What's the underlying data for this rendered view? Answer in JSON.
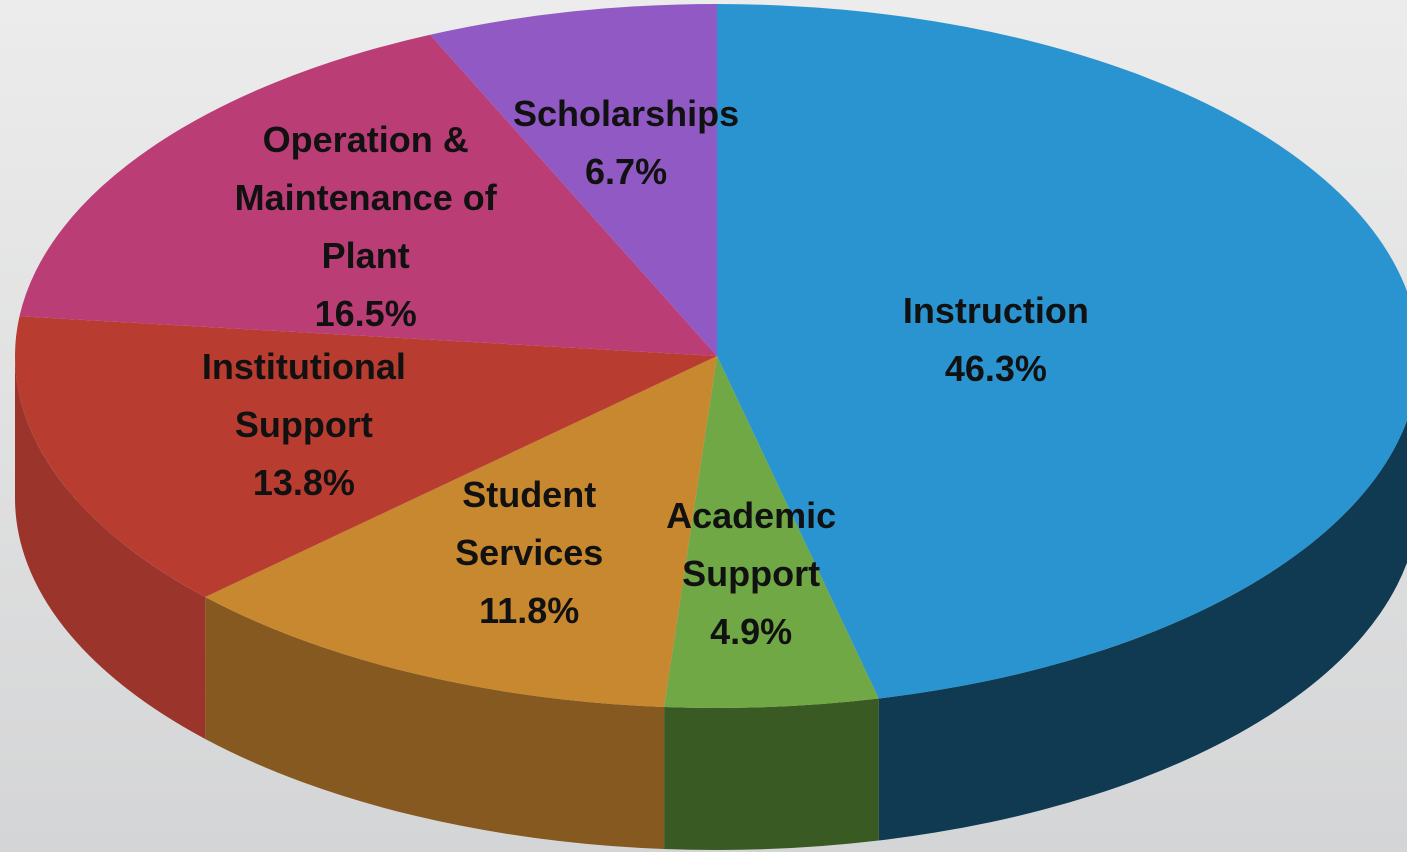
{
  "chart_data": {
    "type": "pie3d",
    "categories": [
      "Instruction",
      "Academic Support",
      "Student Services",
      "Institutional Support",
      "Operation & Maintenance of Plant",
      "Scholarships"
    ],
    "values": [
      46.3,
      4.9,
      11.8,
      13.8,
      16.5,
      6.7
    ],
    "value_labels": [
      "46.3%",
      "4.9%",
      "11.8%",
      "13.8%",
      "16.5%",
      "6.7%"
    ],
    "colors": [
      "#2a94d0",
      "#6fa845",
      "#c8882f",
      "#b83c30",
      "#bb3d76",
      "#9159c4"
    ],
    "side_colors": [
      "#0f3a52",
      "#3a5a24",
      "#85591f",
      "#9b342a",
      "#8a2c58",
      "#6a3f93"
    ]
  }
}
